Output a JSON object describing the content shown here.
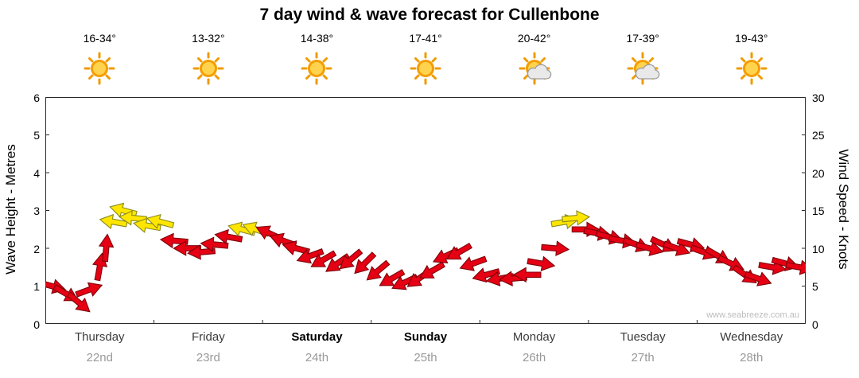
{
  "title": "7 day wind & wave forecast for Cullenbone",
  "watermark": "www.seabreeze.com.au",
  "axes": {
    "left_label": "Wave Height - Metres",
    "right_label": "Wind Speed - Knots",
    "left_ticks": [
      "0",
      "1",
      "2",
      "3",
      "4",
      "5",
      "6"
    ],
    "right_ticks": [
      "0",
      "5",
      "10",
      "15",
      "20",
      "25",
      "30"
    ]
  },
  "days": [
    {
      "name": "Thursday",
      "date": "22nd",
      "temp": "16-34°",
      "icon": "sunny",
      "bold": false
    },
    {
      "name": "Friday",
      "date": "23rd",
      "temp": "13-32°",
      "icon": "sunny",
      "bold": false
    },
    {
      "name": "Saturday",
      "date": "24th",
      "temp": "14-38°",
      "icon": "sunny",
      "bold": true
    },
    {
      "name": "Sunday",
      "date": "25th",
      "temp": "17-41°",
      "icon": "sunny",
      "bold": true
    },
    {
      "name": "Monday",
      "date": "26th",
      "temp": "20-42°",
      "icon": "partly-cloudy",
      "bold": false
    },
    {
      "name": "Tuesday",
      "date": "27th",
      "temp": "17-39°",
      "icon": "partly-cloudy",
      "bold": false
    },
    {
      "name": "Wednesday",
      "date": "28th",
      "temp": "19-43°",
      "icon": "sunny",
      "bold": false
    }
  ],
  "chart_data": {
    "type": "scatter",
    "subtype": "wind-direction-arrows",
    "title": "7 day wind & wave forecast for Cullenbone",
    "x_axis": {
      "unit": "days",
      "range": [
        0,
        7
      ],
      "day_labels": [
        "Thursday 22nd",
        "Friday 23rd",
        "Saturday 24th",
        "Sunday 25th",
        "Monday 26th",
        "Tuesday 27th",
        "Wednesday 28th"
      ]
    },
    "y_left": {
      "label": "Wave Height - Metres",
      "range": [
        0,
        6
      ],
      "ticks": [
        0,
        1,
        2,
        3,
        4,
        5,
        6
      ]
    },
    "y_right": {
      "label": "Wind Speed - Knots",
      "range": [
        0,
        30
      ],
      "ticks": [
        0,
        5,
        10,
        15,
        20,
        25,
        30
      ]
    },
    "legend": "arrow vertical position = wind speed (knots); arrow rotation = wind direction; yellow = stronger breeze (~12+ kn), red = lighter",
    "arrow_colors": {
      "red": "#e60013",
      "yellow": "#ffe600"
    },
    "arrow_outline": {
      "red": "#7d0008",
      "yellow": "#8a8a1e"
    },
    "points": [
      {
        "t": 0.06,
        "knots": 5,
        "rot": 15,
        "color": "red"
      },
      {
        "t": 0.19,
        "knots": 4,
        "rot": 30,
        "color": "red"
      },
      {
        "t": 0.31,
        "knots": 2.8,
        "rot": 40,
        "color": "red"
      },
      {
        "t": 0.4,
        "knots": 4.5,
        "rot": -20,
        "color": "red"
      },
      {
        "t": 0.5,
        "knots": 7.5,
        "rot": -80,
        "color": "red"
      },
      {
        "t": 0.56,
        "knots": 10,
        "rot": -85,
        "color": "red"
      },
      {
        "t": 0.63,
        "knots": 13.5,
        "rot": 190,
        "color": "yellow"
      },
      {
        "t": 0.72,
        "knots": 15,
        "rot": 195,
        "color": "yellow"
      },
      {
        "t": 0.81,
        "knots": 14,
        "rot": 185,
        "color": "yellow"
      },
      {
        "t": 0.94,
        "knots": 13,
        "rot": 190,
        "color": "yellow"
      },
      {
        "t": 1.06,
        "knots": 13.5,
        "rot": 195,
        "color": "yellow"
      },
      {
        "t": 1.19,
        "knots": 11,
        "rot": 185,
        "color": "red"
      },
      {
        "t": 1.31,
        "knots": 10,
        "rot": 180,
        "color": "red"
      },
      {
        "t": 1.44,
        "knots": 9.5,
        "rot": 175,
        "color": "red"
      },
      {
        "t": 1.56,
        "knots": 10.5,
        "rot": 185,
        "color": "red"
      },
      {
        "t": 1.69,
        "knots": 11.5,
        "rot": 190,
        "color": "red"
      },
      {
        "t": 1.81,
        "knots": 12.5,
        "rot": 195,
        "color": "yellow"
      },
      {
        "t": 1.94,
        "knots": 12.5,
        "rot": 200,
        "color": "yellow"
      },
      {
        "t": 2.06,
        "knots": 12,
        "rot": 205,
        "color": "red"
      },
      {
        "t": 2.19,
        "knots": 11,
        "rot": 200,
        "color": "red"
      },
      {
        "t": 2.31,
        "knots": 10,
        "rot": 195,
        "color": "red"
      },
      {
        "t": 2.44,
        "knots": 9,
        "rot": 160,
        "color": "red"
      },
      {
        "t": 2.56,
        "knots": 8.5,
        "rot": 150,
        "color": "red"
      },
      {
        "t": 2.69,
        "knots": 8,
        "rot": 145,
        "color": "red"
      },
      {
        "t": 2.81,
        "knots": 8.5,
        "rot": 140,
        "color": "red"
      },
      {
        "t": 2.94,
        "knots": 8,
        "rot": 135,
        "color": "red"
      },
      {
        "t": 3.06,
        "knots": 7,
        "rot": 140,
        "color": "red"
      },
      {
        "t": 3.19,
        "knots": 6,
        "rot": 150,
        "color": "red"
      },
      {
        "t": 3.31,
        "knots": 5.5,
        "rot": 155,
        "color": "red"
      },
      {
        "t": 3.44,
        "knots": 6,
        "rot": 145,
        "color": "red"
      },
      {
        "t": 3.56,
        "knots": 7,
        "rot": 150,
        "color": "red"
      },
      {
        "t": 3.69,
        "knots": 9,
        "rot": 155,
        "color": "red"
      },
      {
        "t": 3.81,
        "knots": 9.5,
        "rot": 150,
        "color": "red"
      },
      {
        "t": 3.94,
        "knots": 8,
        "rot": 160,
        "color": "red"
      },
      {
        "t": 4.06,
        "knots": 6.5,
        "rot": 165,
        "color": "red"
      },
      {
        "t": 4.19,
        "knots": 6,
        "rot": 170,
        "color": "red"
      },
      {
        "t": 4.31,
        "knots": 6,
        "rot": 175,
        "color": "red"
      },
      {
        "t": 4.44,
        "knots": 6.5,
        "rot": 180,
        "color": "red"
      },
      {
        "t": 4.56,
        "knots": 8,
        "rot": 10,
        "color": "red"
      },
      {
        "t": 4.69,
        "knots": 10,
        "rot": 5,
        "color": "red"
      },
      {
        "t": 4.78,
        "knots": 13.5,
        "rot": -10,
        "color": "yellow"
      },
      {
        "t": 4.88,
        "knots": 14,
        "rot": -5,
        "color": "yellow"
      },
      {
        "t": 4.97,
        "knots": 12.5,
        "rot": 0,
        "color": "red"
      },
      {
        "t": 5.08,
        "knots": 12,
        "rot": 10,
        "color": "red"
      },
      {
        "t": 5.19,
        "knots": 11.5,
        "rot": 15,
        "color": "red"
      },
      {
        "t": 5.31,
        "knots": 11,
        "rot": 10,
        "color": "red"
      },
      {
        "t": 5.44,
        "knots": 10.5,
        "rot": 20,
        "color": "red"
      },
      {
        "t": 5.56,
        "knots": 10,
        "rot": 15,
        "color": "red"
      },
      {
        "t": 5.69,
        "knots": 10.5,
        "rot": 25,
        "color": "red"
      },
      {
        "t": 5.81,
        "knots": 10,
        "rot": 20,
        "color": "red"
      },
      {
        "t": 5.94,
        "knots": 10.5,
        "rot": 15,
        "color": "red"
      },
      {
        "t": 6.06,
        "knots": 9.5,
        "rot": 20,
        "color": "red"
      },
      {
        "t": 6.19,
        "knots": 9,
        "rot": 30,
        "color": "red"
      },
      {
        "t": 6.31,
        "knots": 8,
        "rot": 25,
        "color": "red"
      },
      {
        "t": 6.44,
        "knots": 6.5,
        "rot": 35,
        "color": "red"
      },
      {
        "t": 6.56,
        "knots": 6,
        "rot": 20,
        "color": "red"
      },
      {
        "t": 6.69,
        "knots": 7.5,
        "rot": 10,
        "color": "red"
      },
      {
        "t": 6.81,
        "knots": 8,
        "rot": 15,
        "color": "red"
      },
      {
        "t": 6.94,
        "knots": 7.5,
        "rot": 10,
        "color": "red"
      }
    ]
  }
}
